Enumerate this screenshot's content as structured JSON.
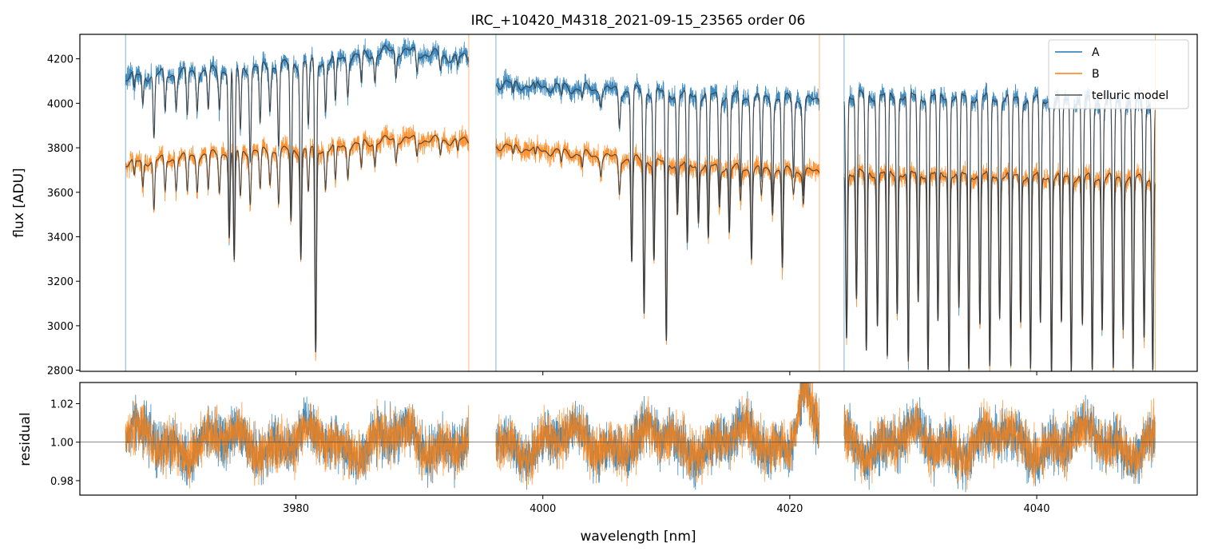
{
  "chart_data": {
    "type": "line",
    "title": "IRC_+10420_M4318_2021-09-15_23565  order 06",
    "xlabel": "wavelength [nm]",
    "xlim": [
      3962.5,
      4053
    ],
    "xticks": [
      3980,
      4000,
      4020,
      4040
    ],
    "xtick_labels": [
      "3980",
      "4000",
      "4020",
      "4040"
    ],
    "colors": {
      "A": "#1f77b4",
      "B": "#ff7f0e",
      "model": "#3a3a3a"
    },
    "panels": [
      {
        "name": "flux",
        "ylabel": "flux [ADU]",
        "ylim": [
          2795,
          4310
        ],
        "yticks": [
          2800,
          3000,
          3200,
          3400,
          3600,
          3800,
          4000,
          4200
        ],
        "ytick_labels": [
          "2800",
          "3000",
          "3200",
          "3400",
          "3600",
          "3800",
          "4000",
          "4200"
        ],
        "legend": {
          "location": "top-right",
          "entries": [
            "A",
            "B",
            "telluric model"
          ]
        },
        "segments": [
          {
            "x_start": 3966.2,
            "x_end": 3994.0,
            "A_continuum": [
              [
                3966.2,
                4120
              ],
              [
                3975,
                4150
              ],
              [
                3982,
                4185
              ],
              [
                3988,
                4240
              ],
              [
                3994,
                4200
              ]
            ],
            "B_continuum": [
              [
                3966.2,
                3730
              ],
              [
                3975,
                3780
              ],
              [
                3982,
                3790
              ],
              [
                3988,
                3840
              ],
              [
                3994,
                3830
              ]
            ]
          },
          {
            "x_start": 3996.2,
            "x_end": 4022.4,
            "A_continuum": [
              [
                3996.2,
                4090
              ],
              [
                4005,
                4060
              ],
              [
                4012,
                4040
              ],
              [
                4018,
                4020
              ],
              [
                4022.4,
                4010
              ]
            ],
            "B_continuum": [
              [
                3996.2,
                3810
              ],
              [
                4005,
                3760
              ],
              [
                4012,
                3720
              ],
              [
                4018,
                3700
              ],
              [
                4022.4,
                3690
              ]
            ]
          },
          {
            "x_start": 4024.4,
            "x_end": 4049.6,
            "A_continuum": [
              [
                4024.4,
                4040
              ],
              [
                4035,
                4030
              ],
              [
                4049.6,
                4000
              ]
            ],
            "B_continuum": [
              [
                4024.4,
                3690
              ],
              [
                4035,
                3680
              ],
              [
                4049.6,
                3660
              ]
            ]
          }
        ],
        "absorption_lines": [
          [
            3966.9,
            4050,
            3660
          ],
          [
            3967.6,
            3990,
            3620
          ],
          [
            3968.5,
            3840,
            3520
          ],
          [
            3969.4,
            3960,
            3600
          ],
          [
            3970.3,
            3990,
            3620
          ],
          [
            3971.2,
            3940,
            3600
          ],
          [
            3972.0,
            3990,
            3620
          ],
          [
            3972.9,
            3970,
            3610
          ],
          [
            3973.8,
            3990,
            3610
          ],
          [
            3974.6,
            3410,
            3400
          ],
          [
            3975.0,
            3270,
            3280
          ],
          [
            3975.5,
            3880,
            3580
          ],
          [
            3976.3,
            3760,
            3560
          ],
          [
            3977.1,
            3900,
            3610
          ],
          [
            3977.9,
            3980,
            3650
          ],
          [
            3978.6,
            3820,
            3560
          ],
          [
            3979.6,
            3480,
            3470
          ],
          [
            3980.4,
            3320,
            3310
          ],
          [
            3981.0,
            3900,
            3600
          ],
          [
            3981.6,
            2870,
            2870
          ],
          [
            3982.4,
            3970,
            3620
          ],
          [
            3983.2,
            3990,
            3640
          ],
          [
            3984.2,
            4050,
            3680
          ],
          [
            3985.3,
            4080,
            3700
          ],
          [
            3986.4,
            4100,
            3720
          ],
          [
            3988.1,
            4120,
            3740
          ],
          [
            3989.8,
            4140,
            3760
          ],
          [
            3991.7,
            4150,
            3770
          ],
          [
            3993.1,
            4160,
            3780
          ],
          [
            3997.6,
            4030,
            3760
          ],
          [
            3999.4,
            4040,
            3750
          ],
          [
            4001.5,
            4030,
            3730
          ],
          [
            4003.2,
            4020,
            3710
          ],
          [
            4004.7,
            4010,
            3690
          ],
          [
            4006.2,
            3900,
            3600
          ],
          [
            4007.2,
            3290,
            3290
          ],
          [
            4008.2,
            3060,
            3060
          ],
          [
            4009.0,
            3300,
            3300
          ],
          [
            4010.0,
            2920,
            2920
          ],
          [
            4010.9,
            3550,
            3500
          ],
          [
            4011.7,
            3350,
            3350
          ],
          [
            4012.6,
            3480,
            3470
          ],
          [
            4013.4,
            3380,
            3380
          ],
          [
            4014.3,
            3580,
            3540
          ],
          [
            4015.1,
            3420,
            3420
          ],
          [
            4016.0,
            3620,
            3560
          ],
          [
            4016.9,
            3320,
            3320
          ],
          [
            4017.7,
            3660,
            3580
          ],
          [
            4018.6,
            3560,
            3520
          ],
          [
            4019.4,
            3280,
            3260
          ],
          [
            4020.3,
            3680,
            3600
          ],
          [
            4021.1,
            3600,
            3560
          ],
          [
            4024.6,
            2950,
            2950
          ],
          [
            4025.4,
            3120,
            3110
          ],
          [
            4026.2,
            2880,
            2880
          ],
          [
            4027.1,
            3000,
            3000
          ],
          [
            4027.9,
            2840,
            2840
          ],
          [
            4028.7,
            3060,
            3060
          ],
          [
            4029.6,
            2820,
            2820
          ],
          [
            4030.4,
            3100,
            3100
          ],
          [
            4031.2,
            2800,
            2800
          ],
          [
            4032.0,
            3000,
            3000
          ],
          [
            4032.9,
            2800,
            2800
          ],
          [
            4033.7,
            3060,
            3060
          ],
          [
            4034.5,
            2800,
            2800
          ],
          [
            4035.4,
            3000,
            3000
          ],
          [
            4036.2,
            2800,
            2800
          ],
          [
            4037.0,
            3040,
            3040
          ],
          [
            4037.9,
            2800,
            2800
          ],
          [
            4038.7,
            3020,
            3020
          ],
          [
            4039.5,
            2800,
            2800
          ],
          [
            4040.3,
            3000,
            3000
          ],
          [
            4041.2,
            2800,
            2800
          ],
          [
            4042.0,
            3000,
            3000
          ],
          [
            4042.8,
            2800,
            2800
          ],
          [
            4043.7,
            3000,
            3000
          ],
          [
            4044.5,
            2800,
            2800
          ],
          [
            4045.3,
            2990,
            2990
          ],
          [
            4046.2,
            2800,
            2800
          ],
          [
            4047.0,
            3000,
            3000
          ],
          [
            4047.8,
            2800,
            2800
          ],
          [
            4048.7,
            2960,
            2960
          ],
          [
            4049.4,
            2810,
            2810
          ]
        ]
      },
      {
        "name": "residual",
        "ylabel": "residual",
        "ylim": [
          0.9725,
          1.031
        ],
        "yticks": [
          0.98,
          1.0,
          1.02
        ],
        "ytick_labels": [
          "0.98",
          "1.00",
          "1.02"
        ],
        "reference_line": 1.0,
        "segments": [
          {
            "x_start": 3966.2,
            "x_end": 3994.0
          },
          {
            "x_start": 3996.2,
            "x_end": 4022.4
          },
          {
            "x_start": 4024.4,
            "x_end": 4049.6
          }
        ]
      }
    ]
  }
}
